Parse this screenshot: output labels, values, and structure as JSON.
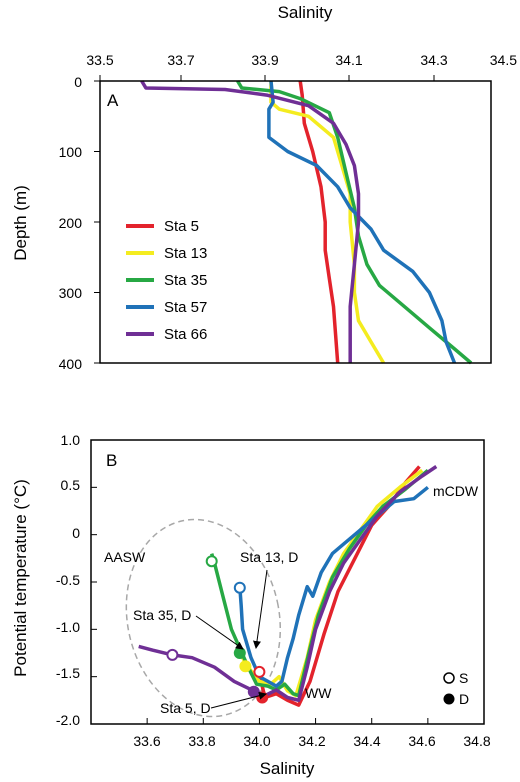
{
  "colors": {
    "Sta 5": "#e3232c",
    "Sta 13": "#f4ec1f",
    "Sta 35": "#27a844",
    "Sta 57": "#1f72b8",
    "Sta 66": "#6f2f95",
    "ellipse": "#a8a8a8",
    "frame": "#000000"
  },
  "chart_data": [
    {
      "panel": "A",
      "type": "line",
      "xlabel": "Salinity",
      "ylabel": "Depth (m)",
      "xlim": [
        33.5,
        34.5
      ],
      "ylim": [
        0,
        400
      ],
      "y_inverted": true,
      "x_axis_position": "top",
      "xticks": [
        "33.5",
        "33.7",
        "33.9",
        "34.1",
        "34.3",
        "34.5"
      ],
      "yticks": [
        "0",
        "100",
        "200",
        "300",
        "400"
      ],
      "legend_placement": "left",
      "series": [
        {
          "name": "Sta 5",
          "points": [
            [
              33.98,
              0
            ],
            [
              33.985,
              20
            ],
            [
              33.99,
              60
            ],
            [
              34.01,
              100
            ],
            [
              34.03,
              150
            ],
            [
              34.04,
              200
            ],
            [
              34.04,
              240
            ],
            [
              34.05,
              280
            ],
            [
              34.06,
              320
            ],
            [
              34.065,
              360
            ],
            [
              34.07,
              400
            ]
          ]
        },
        {
          "name": "Sta 13",
          "points": [
            [
              33.91,
              0
            ],
            [
              33.91,
              30
            ],
            [
              33.93,
              40
            ],
            [
              34.0,
              50
            ],
            [
              34.06,
              80
            ],
            [
              34.08,
              120
            ],
            [
              34.1,
              160
            ],
            [
              34.1,
              200
            ],
            [
              34.11,
              260
            ],
            [
              34.11,
              300
            ],
            [
              34.12,
              340
            ],
            [
              34.15,
              370
            ],
            [
              34.18,
              400
            ]
          ]
        },
        {
          "name": "Sta 35",
          "points": [
            [
              33.83,
              0
            ],
            [
              33.84,
              10
            ],
            [
              33.93,
              15
            ],
            [
              33.98,
              25
            ],
            [
              34.05,
              45
            ],
            [
              34.07,
              80
            ],
            [
              34.09,
              130
            ],
            [
              34.11,
              180
            ],
            [
              34.12,
              220
            ],
            [
              34.14,
              260
            ],
            [
              34.17,
              290
            ],
            [
              34.23,
              320
            ],
            [
              34.29,
              350
            ],
            [
              34.35,
              380
            ],
            [
              34.39,
              400
            ]
          ]
        },
        {
          "name": "Sta 57",
          "points": [
            [
              33.91,
              0
            ],
            [
              33.915,
              30
            ],
            [
              33.905,
              40
            ],
            [
              33.905,
              80
            ],
            [
              33.95,
              100
            ],
            [
              34.02,
              120
            ],
            [
              34.07,
              150
            ],
            [
              34.1,
              180
            ],
            [
              34.15,
              210
            ],
            [
              34.18,
              240
            ],
            [
              34.25,
              270
            ],
            [
              34.29,
              300
            ],
            [
              34.32,
              340
            ],
            [
              34.33,
              370
            ],
            [
              34.35,
              400
            ]
          ]
        },
        {
          "name": "Sta 66",
          "points": [
            [
              33.6,
              0
            ],
            [
              33.61,
              10
            ],
            [
              33.8,
              12
            ],
            [
              33.9,
              20
            ],
            [
              34.0,
              35
            ],
            [
              34.06,
              60
            ],
            [
              34.09,
              90
            ],
            [
              34.11,
              120
            ],
            [
              34.12,
              160
            ],
            [
              34.12,
              200
            ],
            [
              34.11,
              260
            ],
            [
              34.1,
              320
            ],
            [
              34.1,
              370
            ],
            [
              34.1,
              400
            ]
          ]
        }
      ]
    },
    {
      "panel": "B",
      "type": "line",
      "xlabel": "Salinity",
      "ylabel": "Potential temperature (°C)",
      "xlim": [
        33.4,
        34.8
      ],
      "ylim": [
        -2.0,
        1.0
      ],
      "xticks": [
        "33.6",
        "33.8",
        "34.0",
        "34.2",
        "34.4",
        "34.6",
        "34.8"
      ],
      "yticks": [
        "1.0",
        "0.5",
        "0",
        "-0.5",
        "-1.0",
        "-1.5",
        "-2.0"
      ],
      "series": [
        {
          "name": "Sta 5",
          "points": [
            [
              34.0,
              -1.45
            ],
            [
              34.01,
              -1.6
            ],
            [
              34.02,
              -1.72
            ],
            [
              34.06,
              -1.68
            ],
            [
              34.1,
              -1.75
            ],
            [
              34.14,
              -1.8
            ],
            [
              34.18,
              -1.55
            ],
            [
              34.23,
              -1.05
            ],
            [
              34.28,
              -0.6
            ],
            [
              34.34,
              -0.25
            ],
            [
              34.4,
              0.1
            ],
            [
              34.46,
              0.3
            ],
            [
              34.52,
              0.55
            ],
            [
              34.57,
              0.72
            ]
          ]
        },
        {
          "name": "Sta 13",
          "points": [
            [
              33.93,
              -1.25
            ],
            [
              33.96,
              -1.4
            ],
            [
              34.0,
              -1.55
            ],
            [
              34.04,
              -1.58
            ],
            [
              34.07,
              -1.5
            ],
            [
              34.1,
              -1.65
            ],
            [
              34.13,
              -1.7
            ],
            [
              34.17,
              -1.3
            ],
            [
              34.2,
              -0.9
            ],
            [
              34.25,
              -0.5
            ],
            [
              34.3,
              -0.2
            ],
            [
              34.36,
              0.05
            ],
            [
              34.42,
              0.3
            ],
            [
              34.5,
              0.5
            ],
            [
              34.58,
              0.68
            ]
          ]
        },
        {
          "name": "Sta 35",
          "points": [
            [
              33.83,
              -0.2
            ],
            [
              33.84,
              -0.3
            ],
            [
              33.87,
              -0.65
            ],
            [
              33.9,
              -1.0
            ],
            [
              33.93,
              -1.2
            ],
            [
              33.96,
              -1.4
            ],
            [
              33.99,
              -1.58
            ],
            [
              34.03,
              -1.6
            ],
            [
              34.06,
              -1.64
            ],
            [
              34.09,
              -1.58
            ],
            [
              34.12,
              -1.68
            ],
            [
              34.14,
              -1.7
            ],
            [
              34.18,
              -1.2
            ],
            [
              34.21,
              -0.85
            ],
            [
              34.26,
              -0.45
            ],
            [
              34.32,
              -0.15
            ],
            [
              34.38,
              0.1
            ],
            [
              34.44,
              0.3
            ],
            [
              34.52,
              0.48
            ],
            [
              34.6,
              0.68
            ]
          ]
        },
        {
          "name": "Sta 57",
          "points": [
            [
              33.93,
              -0.55
            ],
            [
              33.935,
              -0.75
            ],
            [
              33.94,
              -1.0
            ],
            [
              33.97,
              -1.3
            ],
            [
              34.0,
              -1.5
            ],
            [
              34.03,
              -1.55
            ],
            [
              34.06,
              -1.6
            ],
            [
              34.08,
              -1.55
            ],
            [
              34.1,
              -1.3
            ],
            [
              34.12,
              -1.1
            ],
            [
              34.14,
              -0.85
            ],
            [
              34.17,
              -0.55
            ],
            [
              34.19,
              -0.65
            ],
            [
              34.22,
              -0.4
            ],
            [
              34.26,
              -0.2
            ],
            [
              34.3,
              -0.1
            ],
            [
              34.36,
              0.05
            ],
            [
              34.42,
              0.2
            ],
            [
              34.48,
              0.35
            ],
            [
              34.55,
              0.38
            ],
            [
              34.6,
              0.5
            ]
          ]
        },
        {
          "name": "Sta 66",
          "points": [
            [
              33.57,
              -1.18
            ],
            [
              33.62,
              -1.22
            ],
            [
              33.69,
              -1.27
            ],
            [
              33.76,
              -1.3
            ],
            [
              33.84,
              -1.4
            ],
            [
              33.91,
              -1.55
            ],
            [
              33.98,
              -1.65
            ],
            [
              34.02,
              -1.7
            ],
            [
              34.06,
              -1.64
            ],
            [
              34.1,
              -1.72
            ],
            [
              34.14,
              -1.75
            ],
            [
              34.17,
              -1.4
            ],
            [
              34.2,
              -1.0
            ],
            [
              34.25,
              -0.6
            ],
            [
              34.3,
              -0.3
            ],
            [
              34.36,
              -0.05
            ],
            [
              34.42,
              0.2
            ],
            [
              34.5,
              0.45
            ],
            [
              34.58,
              0.62
            ],
            [
              34.63,
              0.72
            ]
          ]
        }
      ],
      "markers": [
        {
          "series": "Sta 35",
          "type": "S",
          "x": 33.83,
          "y": -0.28
        },
        {
          "series": "Sta 57",
          "type": "S",
          "x": 33.93,
          "y": -0.56
        },
        {
          "series": "Sta 66",
          "type": "S",
          "x": 33.69,
          "y": -1.27
        },
        {
          "series": "Sta 5",
          "type": "S",
          "x": 34.0,
          "y": -1.45
        },
        {
          "series": "Sta 13",
          "type": "D",
          "x": 33.95,
          "y": -1.39
        },
        {
          "series": "Sta 35",
          "type": "D",
          "x": 33.93,
          "y": -1.25
        },
        {
          "series": "Sta 5",
          "type": "D",
          "x": 34.01,
          "y": -1.72
        },
        {
          "series": "Sta 66",
          "type": "D",
          "x": 33.98,
          "y": -1.66
        }
      ],
      "ellipse": {
        "label": "AASW",
        "cx": 33.8,
        "cy": -0.88,
        "rx": 0.27,
        "ry": 1.05,
        "rotation_deg": -12
      },
      "annotations": [
        {
          "text": "AASW"
        },
        {
          "text": "mCDW"
        },
        {
          "text": "WW"
        },
        {
          "text": "Sta 13, D"
        },
        {
          "text": "Sta 35, D"
        },
        {
          "text": "Sta 5, D"
        }
      ],
      "marker_legend": [
        {
          "symbol": "open-circle",
          "label": "S"
        },
        {
          "symbol": "filled-circle",
          "label": "D"
        }
      ]
    }
  ]
}
